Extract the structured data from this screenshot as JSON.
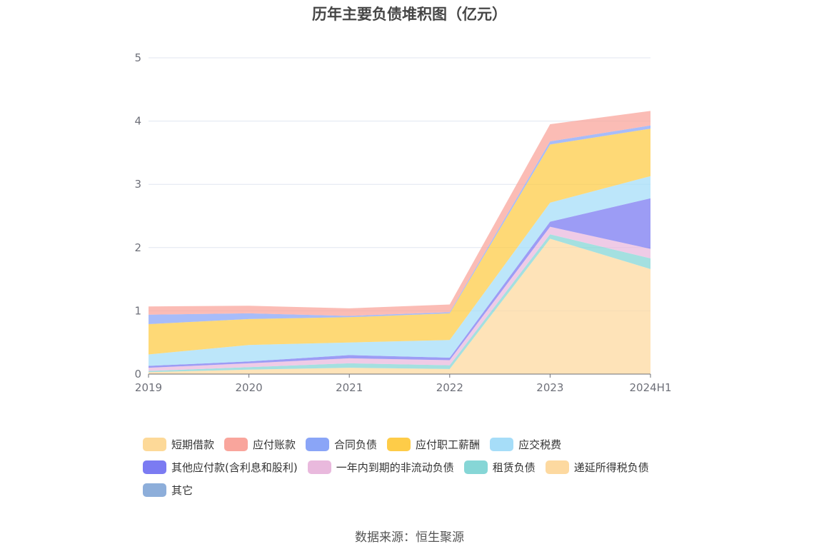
{
  "title": "历年主要负债堆积图（亿元）",
  "source": "数据来源：恒生聚源",
  "chart_data": {
    "type": "area",
    "stacked": true,
    "categories": [
      "2019",
      "2020",
      "2021",
      "2022",
      "2023",
      "2024H1"
    ],
    "ylim": [
      0,
      5
    ],
    "yticks": [
      0,
      1,
      2,
      3,
      4,
      5
    ],
    "grid": true,
    "legend_position": "bottom",
    "series": [
      {
        "name": "短期借款",
        "color": "#FDD998",
        "values": [
          0,
          0,
          0,
          0,
          0,
          0
        ]
      },
      {
        "name": "应付账款",
        "color": "#F9A59C",
        "values": [
          0.13,
          0.12,
          0.12,
          0.12,
          0.27,
          0.23
        ]
      },
      {
        "name": "合同负债",
        "color": "#8AA5F7",
        "values": [
          0.15,
          0.09,
          0.02,
          0.02,
          0.05,
          0.05
        ]
      },
      {
        "name": "应付职工薪酬",
        "color": "#FECC48",
        "values": [
          0.48,
          0.41,
          0.4,
          0.42,
          0.92,
          0.75
        ]
      },
      {
        "name": "应交税费",
        "color": "#A6DDF8",
        "values": [
          0.18,
          0.26,
          0.2,
          0.28,
          0.3,
          0.35
        ]
      },
      {
        "name": "其他应付款(含利息和股利)",
        "color": "#7B7BF2",
        "values": [
          0.03,
          0.03,
          0.05,
          0.04,
          0.08,
          0.8
        ]
      },
      {
        "name": "一年内到期的非流动负债",
        "color": "#E9B9DD",
        "values": [
          0.05,
          0.06,
          0.08,
          0.08,
          0.12,
          0.15
        ]
      },
      {
        "name": "租赁负债",
        "color": "#86D6D6",
        "values": [
          0.02,
          0.04,
          0.07,
          0.06,
          0.07,
          0.17
        ]
      },
      {
        "name": "递延所得税负债",
        "color": "#FDD9A0",
        "values": [
          0.03,
          0.07,
          0.1,
          0.08,
          2.14,
          1.66
        ]
      },
      {
        "name": "其它",
        "color": "#8DAEDA",
        "values": [
          0,
          0,
          0,
          0,
          0,
          0
        ]
      }
    ],
    "stack_order": [
      8,
      7,
      6,
      5,
      4,
      3,
      2,
      1,
      0,
      9
    ]
  }
}
